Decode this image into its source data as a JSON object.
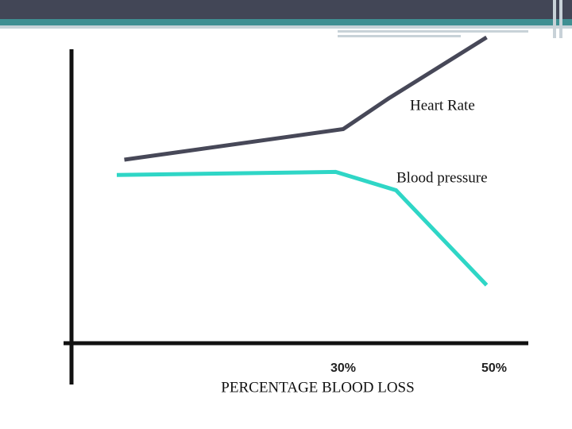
{
  "chart_data": {
    "type": "line",
    "xlabel": "PERCENTAGE BLOOD LOSS",
    "series": [
      {
        "name": "Heart Rate",
        "color": "#474858",
        "x": [
          1,
          30,
          36,
          49
        ],
        "values": [
          60,
          70,
          80,
          100
        ]
      },
      {
        "name": "Blood pressure",
        "color": "#2fd6c6",
        "x": [
          0,
          29,
          37,
          49
        ],
        "values": [
          55,
          56,
          50,
          19
        ]
      }
    ],
    "xlim": [
      -6,
      54
    ],
    "xticks": [
      {
        "value": 30,
        "label": "30%"
      },
      {
        "value": 50,
        "label": "50%"
      }
    ],
    "ylim": [
      0,
      100
    ]
  }
}
